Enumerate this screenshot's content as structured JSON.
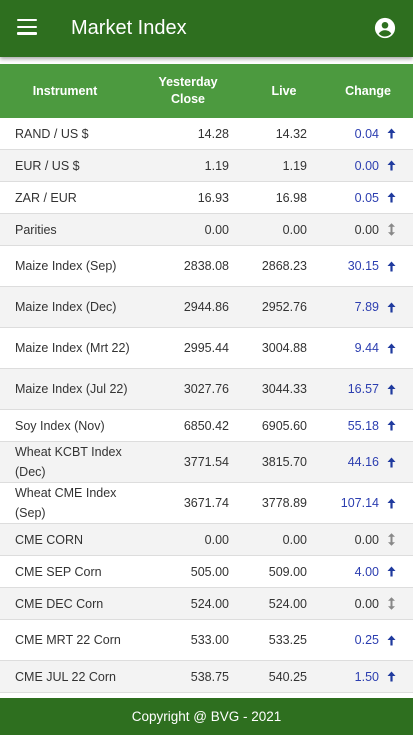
{
  "app": {
    "title": "Market Index"
  },
  "table": {
    "headers": {
      "instrument": "Instrument",
      "yesterday_line1": "Yesterday",
      "yesterday_line2": "Close",
      "live": "Live",
      "change": "Change"
    },
    "rows": [
      {
        "instrument": "RAND / US $",
        "yesterday_close": "14.28",
        "live": "14.32",
        "change": "0.04",
        "direction": "up"
      },
      {
        "instrument": "EUR / US $",
        "yesterday_close": "1.19",
        "live": "1.19",
        "change": "0.00",
        "direction": "up"
      },
      {
        "instrument": "ZAR / EUR",
        "yesterday_close": "16.93",
        "live": "16.98",
        "change": "0.05",
        "direction": "up"
      },
      {
        "instrument": "Parities",
        "yesterday_close": "0.00",
        "live": "0.00",
        "change": "0.00",
        "direction": "flat"
      },
      {
        "instrument": "Maize Index (Sep)",
        "yesterday_close": "2838.08",
        "live": "2868.23",
        "change": "30.15",
        "direction": "up"
      },
      {
        "instrument": "Maize Index (Dec)",
        "yesterday_close": "2944.86",
        "live": "2952.76",
        "change": "7.89",
        "direction": "up"
      },
      {
        "instrument": "Maize Index (Mrt 22)",
        "yesterday_close": "2995.44",
        "live": "3004.88",
        "change": "9.44",
        "direction": "up"
      },
      {
        "instrument": "Maize Index (Jul 22)",
        "yesterday_close": "3027.76",
        "live": "3044.33",
        "change": "16.57",
        "direction": "up"
      },
      {
        "instrument": "Soy Index (Nov)",
        "yesterday_close": "6850.42",
        "live": "6905.60",
        "change": "55.18",
        "direction": "up"
      },
      {
        "instrument": "Wheat KCBT Index (Dec)",
        "yesterday_close": "3771.54",
        "live": "3815.70",
        "change": "44.16",
        "direction": "up"
      },
      {
        "instrument": "Wheat CME Index (Sep)",
        "yesterday_close": "3671.74",
        "live": "3778.89",
        "change": "107.14",
        "direction": "up"
      },
      {
        "instrument": "CME CORN",
        "yesterday_close": "0.00",
        "live": "0.00",
        "change": "0.00",
        "direction": "flat"
      },
      {
        "instrument": "CME SEP Corn",
        "yesterday_close": "505.00",
        "live": "509.00",
        "change": "4.00",
        "direction": "up"
      },
      {
        "instrument": "CME DEC Corn",
        "yesterday_close": "524.00",
        "live": "524.00",
        "change": "0.00",
        "direction": "flat"
      },
      {
        "instrument": "CME MRT 22 Corn",
        "yesterday_close": "533.00",
        "live": "533.25",
        "change": "0.25",
        "direction": "up"
      },
      {
        "instrument": "CME JUL 22 Corn",
        "yesterday_close": "538.75",
        "live": "540.25",
        "change": "1.50",
        "direction": "up"
      }
    ]
  },
  "footer": {
    "text": "Copyright @ BVG - 2021"
  },
  "colors": {
    "appbar": "#2e6f1f",
    "header": "#4c9a3f",
    "change_up": "#2c3eb0",
    "arrow_up": "#1f3a9e",
    "arrow_flat": "#888888"
  },
  "icons": {
    "menu": "menu-icon",
    "account": "account-circle-icon",
    "up": "arrow-up-icon",
    "flat": "arrow-up-down-icon"
  }
}
